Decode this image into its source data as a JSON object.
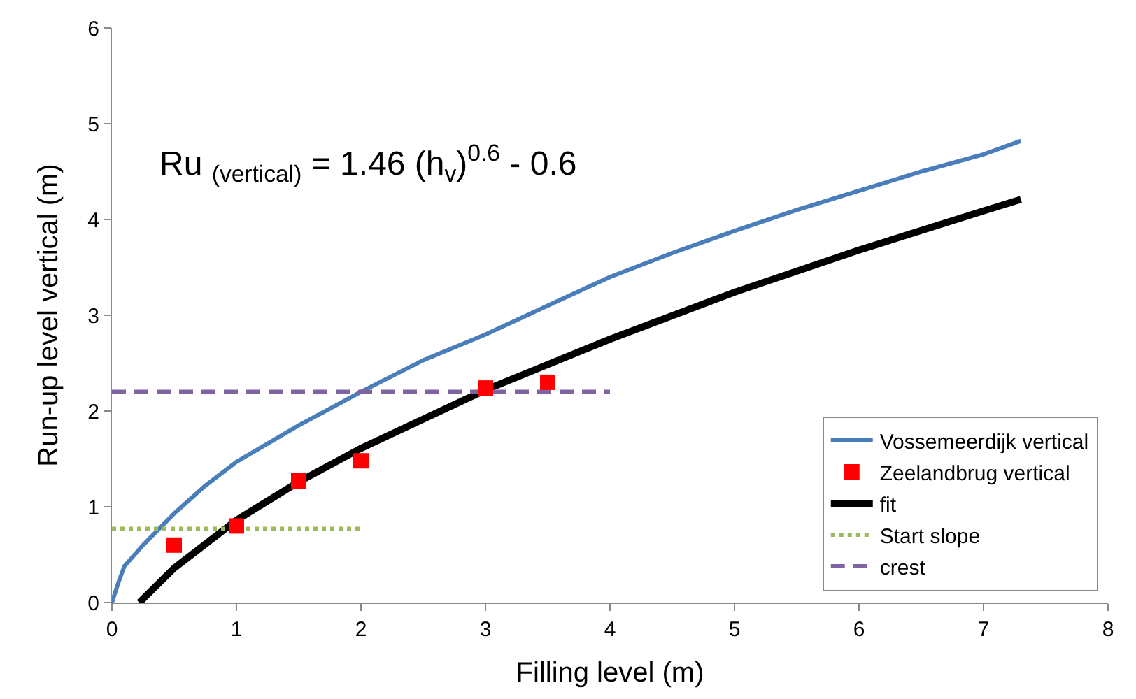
{
  "chart_data": {
    "type": "line",
    "xlabel": "Filling level (m)",
    "ylabel": "Run-up level vertical (m)",
    "xlim": [
      0,
      8
    ],
    "ylim": [
      0,
      6
    ],
    "xticks": [
      0,
      1,
      2,
      3,
      4,
      5,
      6,
      7,
      8
    ],
    "yticks": [
      0,
      1,
      2,
      3,
      4,
      5,
      6
    ],
    "grid": false,
    "legend": "bottom right",
    "annotations": [
      "Ru $_{(vertical)}$ = 1.46 (h$_{v}$)$^{0.6}$ - 0.6"
    ],
    "series": [
      {
        "name": "Vossemeerdijk vertical",
        "color": "#4a7ebb",
        "marker": "none",
        "line_style": "solid",
        "x": [
          0,
          0.05,
          0.1,
          0.25,
          0.5,
          0.75,
          1,
          1.5,
          2,
          2.5,
          3,
          3.5,
          4,
          4.5,
          5,
          5.5,
          6,
          6.5,
          7,
          7.3
        ],
        "values": [
          0,
          0.2,
          0.38,
          0.6,
          0.93,
          1.22,
          1.47,
          1.85,
          2.2,
          2.53,
          2.8,
          3.1,
          3.4,
          3.65,
          3.88,
          4.1,
          4.3,
          4.5,
          4.68,
          4.82
        ]
      },
      {
        "name": "Zeelandbrug vertical",
        "type": "scatter",
        "color": "#ff0000",
        "marker": "square",
        "x": [
          0.5,
          1,
          1.5,
          2,
          3,
          3.5
        ],
        "values": [
          0.6,
          0.8,
          1.27,
          1.48,
          2.24,
          2.3
        ]
      },
      {
        "name": "fit",
        "color": "#000000",
        "marker": "none",
        "line_style": "solid",
        "x": [
          0.22,
          0.5,
          1,
          1.5,
          2,
          3,
          4,
          5,
          6,
          7,
          7.3
        ],
        "values": [
          0,
          0.36,
          0.86,
          1.26,
          1.61,
          2.22,
          2.75,
          3.24,
          3.68,
          4.09,
          4.21
        ]
      },
      {
        "name": "Start slope",
        "color": "#9bbb59",
        "marker": "none",
        "line_style": "dotted",
        "x": [
          0,
          2
        ],
        "values": [
          0.77,
          0.77
        ]
      },
      {
        "name": "crest",
        "color": "#8064a2",
        "marker": "none",
        "line_style": "dashed",
        "x": [
          0,
          4
        ],
        "values": [
          2.2,
          2.2
        ]
      }
    ]
  }
}
